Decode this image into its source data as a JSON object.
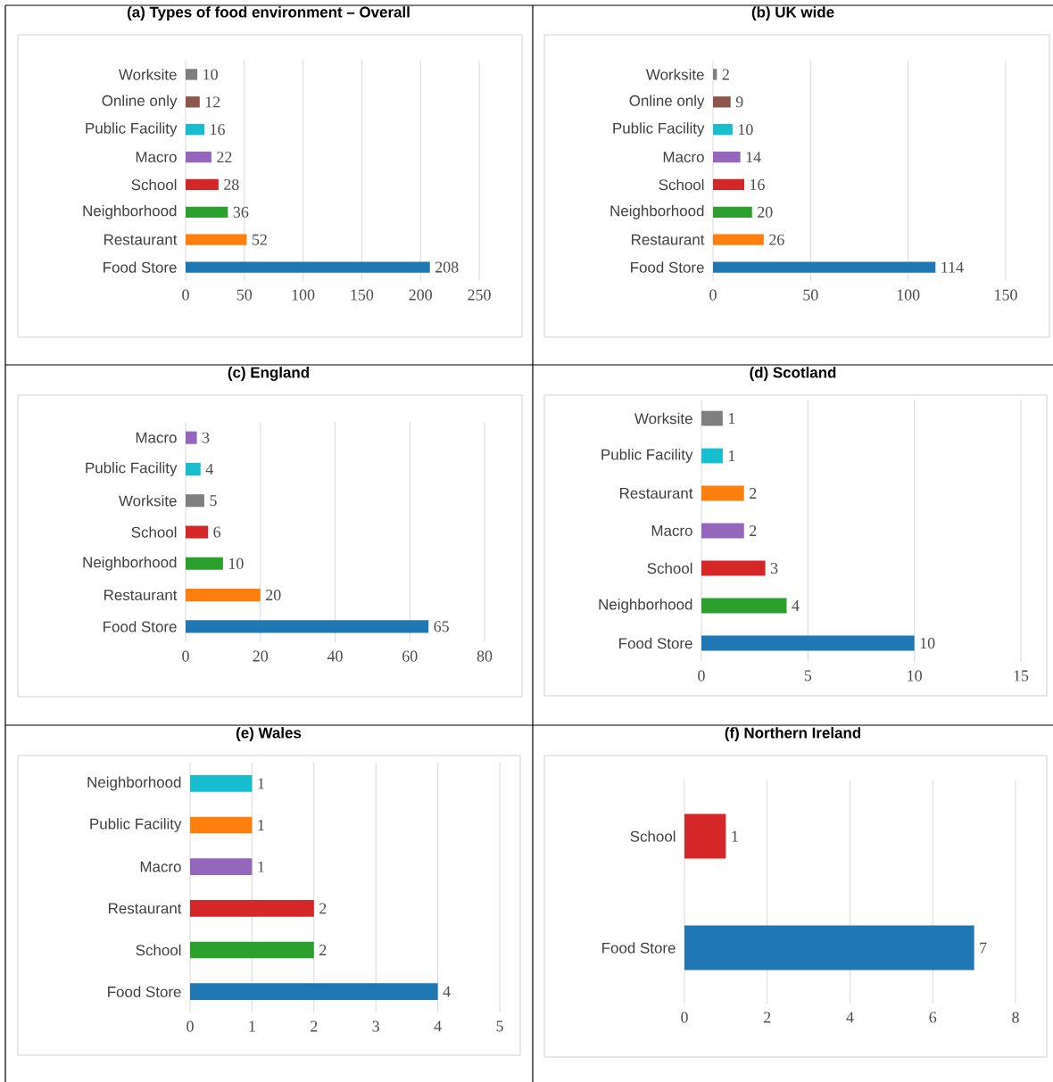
{
  "chart_data": [
    {
      "type": "bar",
      "orientation": "horizontal",
      "title": "(a) Types of food environment – Overall",
      "categories": [
        "Worksite",
        "Online only",
        "Public Facility",
        "Macro",
        "School",
        "Neighborhood",
        "Restaurant",
        "Food Store"
      ],
      "values": [
        10,
        12,
        16,
        22,
        28,
        36,
        52,
        208
      ],
      "colors": [
        "#7f7f7f",
        "#8c564b",
        "#17becf",
        "#9467bd",
        "#d62728",
        "#2ca02c",
        "#ff7f0e",
        "#1f77b4"
      ],
      "xlim": [
        0,
        250
      ],
      "xticks": [
        0,
        50,
        100,
        150,
        200,
        250
      ],
      "grid": "x",
      "data_labels": true
    },
    {
      "type": "bar",
      "orientation": "horizontal",
      "title": "(b) UK wide",
      "categories": [
        "Worksite",
        "Online only",
        "Public Facility",
        "Macro",
        "School",
        "Neighborhood",
        "Restaurant",
        "Food Store"
      ],
      "values": [
        2,
        9,
        10,
        14,
        16,
        20,
        26,
        114
      ],
      "colors": [
        "#7f7f7f",
        "#8c564b",
        "#17becf",
        "#9467bd",
        "#d62728",
        "#2ca02c",
        "#ff7f0e",
        "#1f77b4"
      ],
      "xlim": [
        0,
        150
      ],
      "xticks": [
        0,
        50,
        100,
        150
      ],
      "grid": "x",
      "data_labels": true
    },
    {
      "type": "bar",
      "orientation": "horizontal",
      "title": "(c) England",
      "categories": [
        "Macro",
        "Public Facility",
        "Worksite",
        "School",
        "Neighborhood",
        "Restaurant",
        "Food Store"
      ],
      "values": [
        3,
        4,
        5,
        6,
        10,
        20,
        65
      ],
      "colors": [
        "#9467bd",
        "#17becf",
        "#7f7f7f",
        "#d62728",
        "#2ca02c",
        "#ff7f0e",
        "#1f77b4"
      ],
      "xlim": [
        0,
        80
      ],
      "xticks": [
        0,
        20,
        40,
        60,
        80
      ],
      "grid": "x",
      "data_labels": true
    },
    {
      "type": "bar",
      "orientation": "horizontal",
      "title": "(d) Scotland",
      "categories": [
        "Worksite",
        "Public Facility",
        "Restaurant",
        "Macro",
        "School",
        "Neighborhood",
        "Food Store"
      ],
      "values": [
        1,
        1,
        2,
        2,
        3,
        4,
        10
      ],
      "colors": [
        "#7f7f7f",
        "#17becf",
        "#ff7f0e",
        "#9467bd",
        "#d62728",
        "#2ca02c",
        "#1f77b4"
      ],
      "xlim": [
        0,
        15
      ],
      "xticks": [
        0,
        5,
        10,
        15
      ],
      "grid": "x",
      "data_labels": true
    },
    {
      "type": "bar",
      "orientation": "horizontal",
      "title": "(e) Wales",
      "categories": [
        "Neighborhood",
        "Public Facility",
        "Macro",
        "Restaurant",
        "School",
        "Food Store"
      ],
      "values": [
        1,
        1,
        1,
        2,
        2,
        4
      ],
      "colors": [
        "#17becf",
        "#ff7f0e",
        "#9467bd",
        "#d62728",
        "#2ca02c",
        "#1f77b4"
      ],
      "xlim": [
        0,
        5
      ],
      "xticks": [
        0,
        1,
        2,
        3,
        4,
        5
      ],
      "grid": "x",
      "data_labels": true
    },
    {
      "type": "bar",
      "orientation": "horizontal",
      "title": "(f) Northern Ireland",
      "categories": [
        "School",
        "Food Store"
      ],
      "values": [
        1,
        7
      ],
      "colors": [
        "#d62728",
        "#1f77b4"
      ],
      "xlim": [
        0,
        8
      ],
      "xticks": [
        0,
        2,
        4,
        6,
        8
      ],
      "grid": "x",
      "data_labels": true
    }
  ]
}
